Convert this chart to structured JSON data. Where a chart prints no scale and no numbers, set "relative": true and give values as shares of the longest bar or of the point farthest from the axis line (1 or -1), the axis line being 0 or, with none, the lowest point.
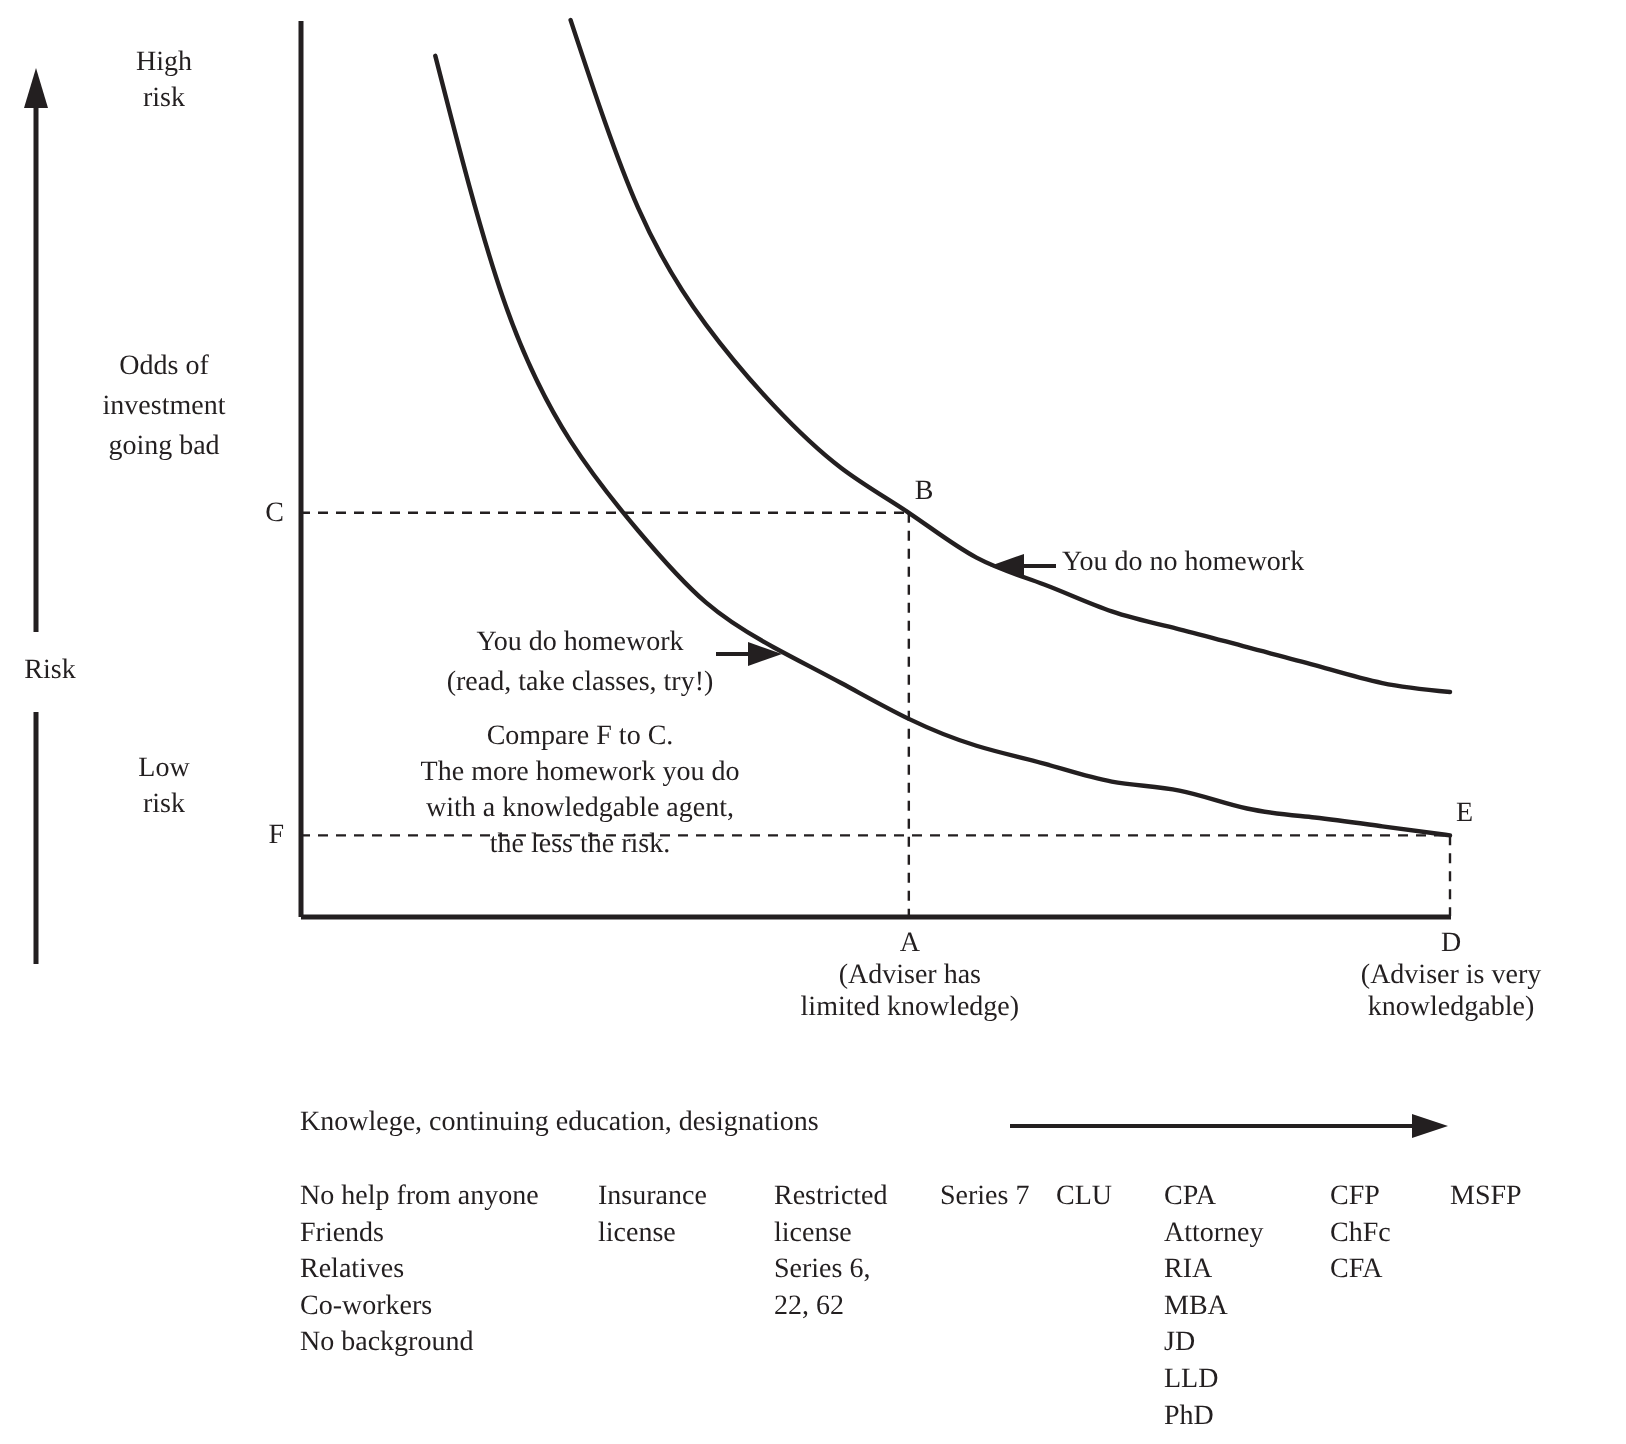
{
  "chart_data": {
    "type": "line",
    "relative": true,
    "xlabel": "Knowlege, continuing education, designations",
    "categories": [
      null,
      null,
      null,
      null,
      null,
      null,
      null,
      null,
      null,
      "A\n(Adviser has\nlimited knowledge)",
      null,
      null,
      null,
      null,
      null,
      null,
      null,
      "D\n(Adviser is very\nknowledgable)"
    ],
    "series": [
      {
        "name": "You do no homework",
        "color": "#231f20",
        "values": [
          null,
          null,
          null,
          null,
          1,
          0.79,
          0.66,
          0.57,
          0.5,
          0.45,
          0.4,
          0.37,
          0.34,
          0.32,
          0.3,
          0.28,
          0.26,
          0.25
        ]
      },
      {
        "name": "You do homework\n(read, take classes, try!)",
        "color": "#231f20",
        "values": [
          null,
          null,
          0.96,
          0.69,
          0.53,
          0.43,
          0.35,
          0.3,
          0.26,
          0.22,
          0.19,
          0.17,
          0.15,
          0.14,
          0.12,
          0.11,
          0.1,
          0.09
        ]
      }
    ],
    "ref_lines": [
      {
        "axis": "y",
        "value": 0.45,
        "label": "C",
        "line_style": "dashed"
      },
      {
        "axis": "y",
        "value": 0.09,
        "label": "F",
        "line_style": "dashed"
      },
      {
        "axis": "x",
        "value": "A\n(Adviser has\nlimited knowledge)",
        "line_style": "dashed"
      },
      {
        "axis": "x",
        "value": "D\n(Adviser is very\nknowledgable)",
        "line_style": "dashed"
      }
    ],
    "annotations": [
      "Risk",
      "High\nrisk",
      "Odds of\ninvestment\ngoing bad",
      "Low\nrisk",
      "Compare F to C.\nThe more homework you do\nwith a knowledgable agent,\nthe less the risk.",
      {
        "text": "B",
        "x": "A\n(Adviser has\nlimited knowledge)",
        "y": 0.45
      },
      {
        "text": "E",
        "x": "D\n(Adviser is very\nknowledgable)",
        "y": 0.09
      },
      "No help from anyone\nFriends\nRelatives\nCo-workers\nNo background",
      "Insurance\nlicense",
      "Restricted\nlicense\n\nSeries 6,\n22, 62",
      "Series 7",
      "CLU",
      "CPA\nAttorney\nRIA\nMBA\nJD\nLLD\nPhD",
      "CFP\nChFc\nCFA",
      "MSFP"
    ]
  }
}
